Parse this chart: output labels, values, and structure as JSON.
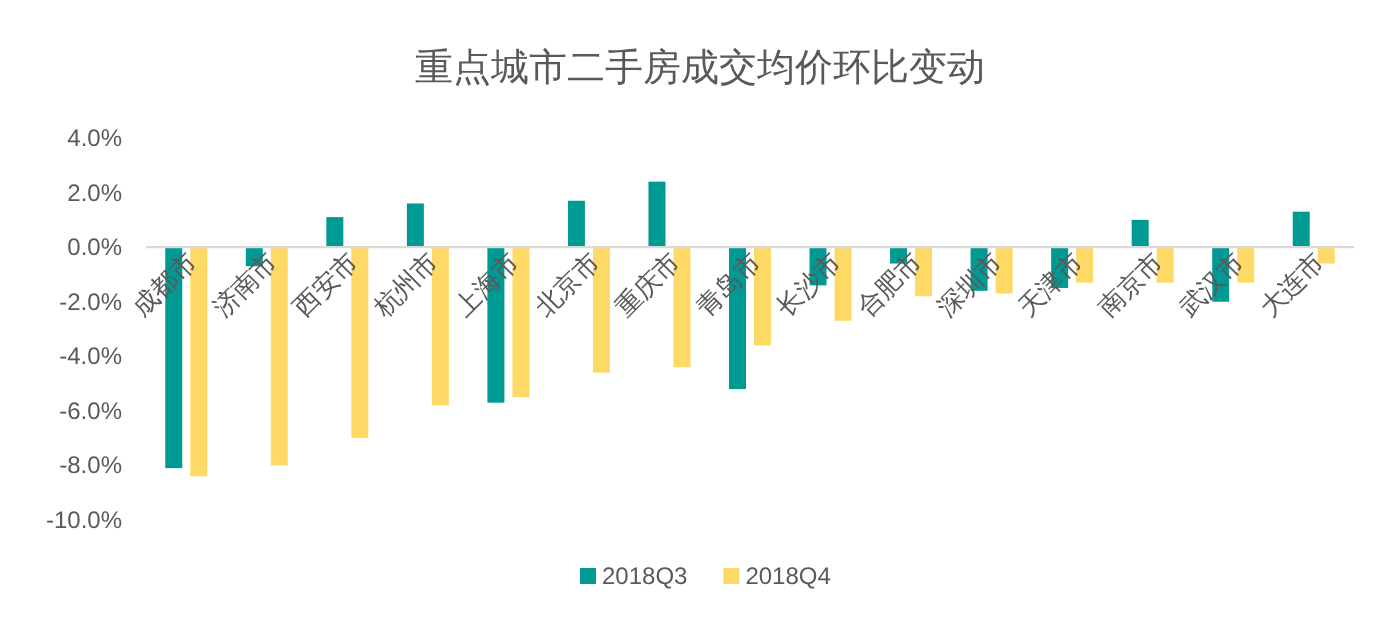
{
  "chart_data": {
    "type": "bar",
    "title": "重点城市二手房成交均价环比变动",
    "categories": [
      "成都市",
      "济南市",
      "西安市",
      "杭州市",
      "上海市",
      "北京市",
      "重庆市",
      "青岛市",
      "长沙市",
      "合肥市",
      "深圳市",
      "天津市",
      "南京市",
      "武汉市",
      "大连市"
    ],
    "series": [
      {
        "name": "2018Q3",
        "color": "#009a94",
        "values": [
          -8.1,
          -0.7,
          1.1,
          1.6,
          -5.7,
          1.7,
          2.4,
          -5.2,
          -1.4,
          -0.6,
          -1.6,
          -1.5,
          1.0,
          -2.0,
          1.3
        ]
      },
      {
        "name": "2018Q4",
        "color": "#ffd966",
        "values": [
          -8.4,
          -8.0,
          -7.0,
          -5.8,
          -5.5,
          -4.6,
          -4.4,
          -3.6,
          -2.7,
          -1.8,
          -1.7,
          -1.3,
          -1.3,
          -1.3,
          -0.6
        ]
      }
    ],
    "ylim": [
      -10,
      4
    ],
    "yticks": [
      {
        "value": 4,
        "label": "4.0%"
      },
      {
        "value": 2,
        "label": "2.0%"
      },
      {
        "value": 0,
        "label": "0.0%"
      },
      {
        "value": -2,
        "label": "-2.0%"
      },
      {
        "value": -4,
        "label": "-4.0%"
      },
      {
        "value": -6,
        "label": "-6.0%"
      },
      {
        "value": -8,
        "label": "-8.0%"
      },
      {
        "value": -10,
        "label": "-10.0%"
      }
    ],
    "grid": false,
    "legend": "bottom"
  }
}
